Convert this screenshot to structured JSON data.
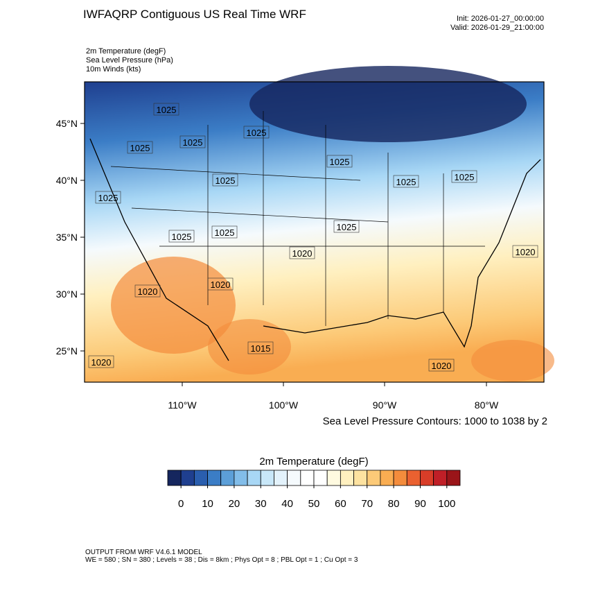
{
  "header": {
    "title": "IWFAQRP Contiguous US Real Time WRF",
    "init": "Init: 2026-01-27_00:00:00",
    "valid": "Valid: 2026-01-29_21:00:00"
  },
  "fields": [
    "2m Temperature   (degF)",
    "Sea Level Pressure   (hPa)",
    "10m Winds   (kts)"
  ],
  "map": {
    "lat_labels": [
      "45°N",
      "40°N",
      "35°N",
      "30°N",
      "25°N"
    ],
    "lon_labels": [
      "110°W",
      "100°W",
      "90°W",
      "80°W"
    ],
    "contour_labels": [
      "1025",
      "1025",
      "1025",
      "1025",
      "1025",
      "1025",
      "1025",
      "1025",
      "1025",
      "1025",
      "1025",
      "1025",
      "1020",
      "1020",
      "1020",
      "1020",
      "1020",
      "1020",
      "1015"
    ],
    "contour_note": "Sea Level Pressure Contours: 1000 to 1038 by 2"
  },
  "colorbar": {
    "title": "2m Temperature  (degF)",
    "colors": [
      "#15265e",
      "#1f3f8f",
      "#2a5eae",
      "#3b7dc6",
      "#5c9fd8",
      "#82bde9",
      "#a8d7f5",
      "#c8e7f8",
      "#e3f2fb",
      "#f5fafd",
      "#ffffff",
      "#ffffff",
      "#fffae0",
      "#fff0c0",
      "#fde2a0",
      "#fcca78",
      "#f9ad52",
      "#f48c3c",
      "#ea6130",
      "#d83d28",
      "#c01f27",
      "#9a1519"
    ],
    "ticks": [
      0,
      10,
      20,
      30,
      40,
      50,
      60,
      70,
      80,
      90,
      100
    ],
    "lim": [
      -5,
      105
    ]
  },
  "footer": {
    "line1": "OUTPUT FROM WRF V4.6.1 MODEL",
    "line2": "WE = 580 ; SN = 380 ; Levels = 38 ; Dis = 8km ; Phys Opt = 8 ; PBL Opt = 1 ; Cu Opt = 3"
  }
}
